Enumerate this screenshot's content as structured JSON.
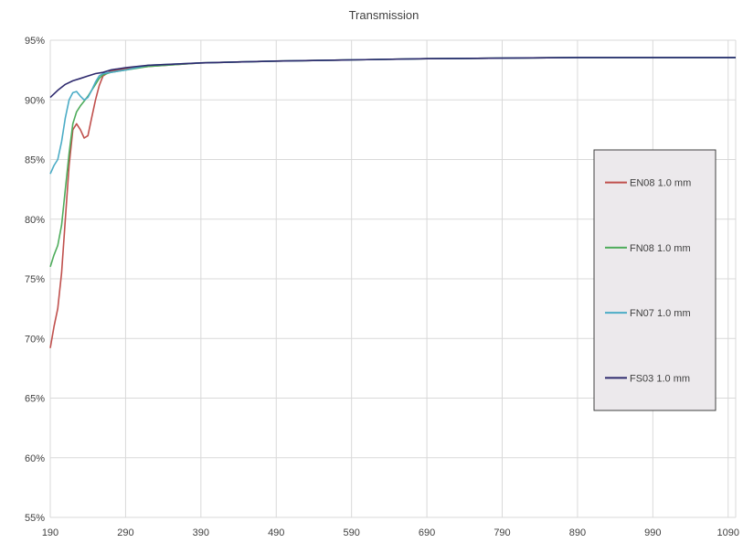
{
  "chart_data": {
    "type": "line",
    "title": "Transmission",
    "xlabel": "",
    "ylabel": "",
    "xlim": [
      190,
      1100
    ],
    "ylim": [
      55,
      95
    ],
    "x_ticks": [
      190,
      290,
      390,
      490,
      590,
      690,
      790,
      890,
      990,
      1090
    ],
    "y_ticks": [
      "95%",
      "90%",
      "85%",
      "80%",
      "75%",
      "70%",
      "65%",
      "60%",
      "55%"
    ],
    "y_tick_values": [
      95,
      90,
      85,
      80,
      75,
      70,
      65,
      60,
      55
    ],
    "grid": true,
    "legend_position": "right",
    "series": [
      {
        "name": "EN08 1.0 mm",
        "color": "#c0504d",
        "points": [
          [
            190,
            69.2
          ],
          [
            195,
            71.0
          ],
          [
            200,
            72.5
          ],
          [
            205,
            75.5
          ],
          [
            210,
            80.0
          ],
          [
            215,
            84.5
          ],
          [
            220,
            87.5
          ],
          [
            225,
            88.0
          ],
          [
            230,
            87.5
          ],
          [
            235,
            86.8
          ],
          [
            240,
            87.0
          ],
          [
            245,
            88.5
          ],
          [
            250,
            90.0
          ],
          [
            255,
            91.2
          ],
          [
            260,
            92.0
          ],
          [
            270,
            92.4
          ],
          [
            290,
            92.6
          ],
          [
            320,
            92.8
          ],
          [
            390,
            93.1
          ],
          [
            490,
            93.25
          ],
          [
            590,
            93.35
          ],
          [
            690,
            93.45
          ],
          [
            790,
            93.5
          ],
          [
            890,
            93.55
          ],
          [
            990,
            93.55
          ],
          [
            1090,
            93.55
          ],
          [
            1100,
            93.55
          ]
        ]
      },
      {
        "name": "FN08 1.0 mm",
        "color": "#4eac5b",
        "points": [
          [
            190,
            76.0
          ],
          [
            195,
            77.0
          ],
          [
            200,
            77.8
          ],
          [
            205,
            79.5
          ],
          [
            210,
            82.5
          ],
          [
            215,
            85.5
          ],
          [
            220,
            88.0
          ],
          [
            225,
            89.0
          ],
          [
            230,
            89.5
          ],
          [
            235,
            89.9
          ],
          [
            240,
            90.3
          ],
          [
            245,
            90.8
          ],
          [
            250,
            91.3
          ],
          [
            255,
            91.8
          ],
          [
            260,
            92.1
          ],
          [
            270,
            92.3
          ],
          [
            290,
            92.5
          ],
          [
            320,
            92.8
          ],
          [
            390,
            93.1
          ],
          [
            490,
            93.25
          ],
          [
            590,
            93.35
          ],
          [
            690,
            93.45
          ],
          [
            790,
            93.5
          ],
          [
            890,
            93.55
          ],
          [
            990,
            93.55
          ],
          [
            1090,
            93.55
          ],
          [
            1100,
            93.55
          ]
        ]
      },
      {
        "name": "FN07 1.0 mm",
        "color": "#4bacc6",
        "points": [
          [
            190,
            83.8
          ],
          [
            195,
            84.5
          ],
          [
            200,
            85.0
          ],
          [
            205,
            86.5
          ],
          [
            210,
            88.5
          ],
          [
            215,
            90.0
          ],
          [
            220,
            90.6
          ],
          [
            225,
            90.7
          ],
          [
            230,
            90.3
          ],
          [
            235,
            90.0
          ],
          [
            240,
            90.2
          ],
          [
            245,
            90.8
          ],
          [
            250,
            91.5
          ],
          [
            255,
            92.0
          ],
          [
            260,
            92.2
          ],
          [
            270,
            92.3
          ],
          [
            290,
            92.5
          ],
          [
            320,
            92.9
          ],
          [
            390,
            93.1
          ],
          [
            490,
            93.25
          ],
          [
            590,
            93.35
          ],
          [
            690,
            93.45
          ],
          [
            790,
            93.5
          ],
          [
            890,
            93.55
          ],
          [
            990,
            93.55
          ],
          [
            1090,
            93.55
          ],
          [
            1100,
            93.55
          ]
        ]
      },
      {
        "name": "FS03 1.0 mm",
        "color": "#2e2a6e",
        "points": [
          [
            190,
            90.2
          ],
          [
            200,
            90.8
          ],
          [
            210,
            91.3
          ],
          [
            220,
            91.6
          ],
          [
            230,
            91.8
          ],
          [
            240,
            92.0
          ],
          [
            250,
            92.2
          ],
          [
            260,
            92.3
          ],
          [
            270,
            92.5
          ],
          [
            290,
            92.7
          ],
          [
            320,
            92.9
          ],
          [
            390,
            93.1
          ],
          [
            490,
            93.25
          ],
          [
            590,
            93.35
          ],
          [
            690,
            93.45
          ],
          [
            790,
            93.5
          ],
          [
            890,
            93.55
          ],
          [
            990,
            93.55
          ],
          [
            1090,
            93.55
          ],
          [
            1100,
            93.55
          ]
        ]
      }
    ]
  }
}
